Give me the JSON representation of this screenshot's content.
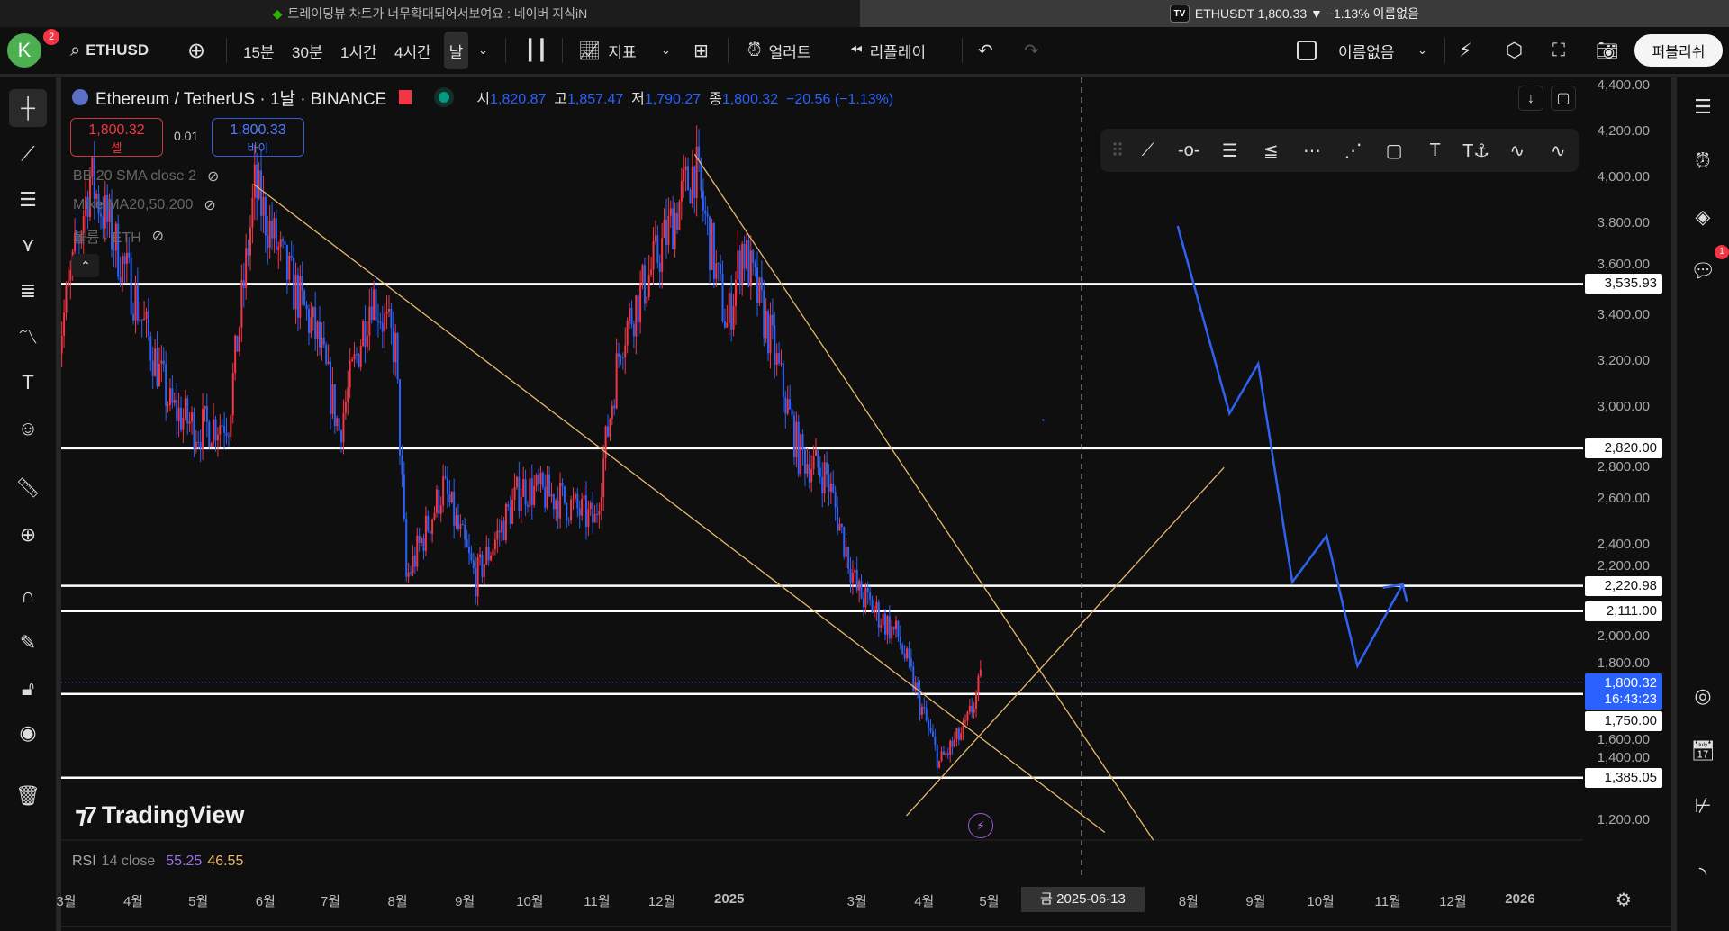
{
  "titlebar": {
    "left_tab": "트레이딩뷰 차트가 너무확대되어서보여요 : 네이버 지식iN",
    "right_tab_badge": "TV",
    "right_tab": "ETHUSDT 1,800.33 ▼ −1.13% 이름없음"
  },
  "toolbar": {
    "avatar_letter": "K",
    "avatar_badge": "2",
    "symbol": "ETHUSD",
    "intervals": [
      "15분",
      "30분",
      "1시간",
      "4시간",
      "날"
    ],
    "active_interval": "날",
    "indicators": "지표",
    "alert": "얼러트",
    "replay": "리플레이",
    "layout_name": "이름없음",
    "publish": "퍼블리쉬"
  },
  "legend": {
    "title": "Ethereum / TetherUS · 1날 · BINANCE",
    "o_label": "시",
    "o": "1,820.87",
    "h_label": "고",
    "h": "1,857.47",
    "l_label": "저",
    "l": "1,790.27",
    "c_label": "종",
    "c": "1,800.32",
    "change": "−20.56 (−1.13%)"
  },
  "trade": {
    "sell_price": "1,800.32",
    "sell_label": "셀",
    "spread": "0.01",
    "buy_price": "1,800.33",
    "buy_label": "바이"
  },
  "indicators": [
    "BB 20 SMA close 2",
    "Mike,MA20,50,200",
    "볼륨 · ETH"
  ],
  "rsi": {
    "label": "RSI",
    "params": "14 close",
    "v1": "55.25",
    "v2": "46.55"
  },
  "logo": "TradingView",
  "price_axis": {
    "ticks": [
      4400,
      4200,
      4000,
      3800,
      3600,
      3400,
      3200,
      3000,
      2800,
      2600,
      2400,
      2200,
      2000,
      1800,
      1600,
      1400,
      1200
    ],
    "levels": [
      {
        "value": 3535.93,
        "label": "3,535.93"
      },
      {
        "value": 2820,
        "label": "2,820.00"
      },
      {
        "value": 2220.98,
        "label": "2,220.98"
      },
      {
        "value": 2111,
        "label": "2,111.00"
      },
      {
        "value": 1750,
        "label": "1,750.00"
      },
      {
        "value": 1385.05,
        "label": "1,385.05"
      }
    ],
    "last_price": {
      "value": 1800.32,
      "label": "1,800.32",
      "countdown": "16:43:23"
    }
  },
  "time_axis": {
    "labels": [
      {
        "d": "2024-03-01",
        "t": "3월"
      },
      {
        "d": "2024-04-01",
        "t": "4월"
      },
      {
        "d": "2024-05-01",
        "t": "5월"
      },
      {
        "d": "2024-06-01",
        "t": "6월"
      },
      {
        "d": "2024-07-01",
        "t": "7월"
      },
      {
        "d": "2024-08-01",
        "t": "8월"
      },
      {
        "d": "2024-09-01",
        "t": "9월"
      },
      {
        "d": "2024-10-01",
        "t": "10월"
      },
      {
        "d": "2024-11-01",
        "t": "11월"
      },
      {
        "d": "2024-12-01",
        "t": "12월"
      },
      {
        "d": "2025-01-01",
        "t": "2025"
      },
      {
        "d": "2025-03-01",
        "t": "3월"
      },
      {
        "d": "2025-04-01",
        "t": "4월"
      },
      {
        "d": "2025-05-01",
        "t": "5월"
      },
      {
        "d": "2025-08-01",
        "t": "8월"
      },
      {
        "d": "2025-09-01",
        "t": "9월"
      },
      {
        "d": "2025-10-01",
        "t": "10월"
      },
      {
        "d": "2025-11-01",
        "t": "11월"
      },
      {
        "d": "2025-12-01",
        "t": "12월"
      },
      {
        "d": "2026-01-01",
        "t": "2026"
      }
    ],
    "crosshair_label": "금 2025-06-13"
  },
  "chart_data": {
    "type": "candlestick",
    "symbol": "ETHUSDT",
    "ylim": [
      1200,
      4400
    ],
    "up_color": "#f23645",
    "down_color": "#2962ff",
    "approx_close_path": [
      [
        "2024-02-26",
        3250
      ],
      [
        "2024-03-12",
        4000
      ],
      [
        "2024-04-01",
        3500
      ],
      [
        "2024-04-18",
        3000
      ],
      [
        "2024-05-01",
        2900
      ],
      [
        "2024-05-15",
        2950
      ],
      [
        "2024-05-27",
        3950
      ],
      [
        "2024-06-10",
        3600
      ],
      [
        "2024-06-25",
        3300
      ],
      [
        "2024-07-05",
        2900
      ],
      [
        "2024-07-20",
        3500
      ],
      [
        "2024-07-31",
        3250
      ],
      [
        "2024-08-05",
        2250
      ],
      [
        "2024-08-22",
        2650
      ],
      [
        "2024-09-06",
        2250
      ],
      [
        "2024-09-27",
        2650
      ],
      [
        "2024-10-15",
        2600
      ],
      [
        "2024-10-31",
        2500
      ],
      [
        "2024-11-12",
        3300
      ],
      [
        "2024-12-01",
        3700
      ],
      [
        "2024-12-16",
        4050
      ],
      [
        "2024-12-31",
        3350
      ],
      [
        "2025-01-07",
        3700
      ],
      [
        "2025-01-20",
        3300
      ],
      [
        "2025-02-02",
        2800
      ],
      [
        "2025-02-15",
        2700
      ],
      [
        "2025-03-01",
        2200
      ],
      [
        "2025-03-20",
        2000
      ],
      [
        "2025-04-08",
        1450
      ],
      [
        "2025-04-20",
        1600
      ],
      [
        "2025-04-27",
        1800
      ]
    ]
  },
  "colors": {
    "accent": "#2962ff",
    "trendline": "#e8b96f",
    "projection": "#2f62f0",
    "sell": "#f23645"
  }
}
